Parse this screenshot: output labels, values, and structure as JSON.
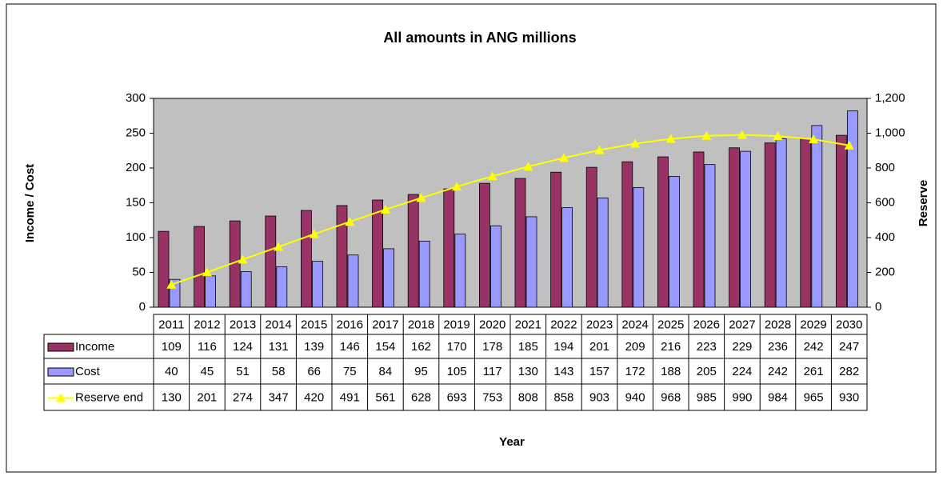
{
  "chart_data": {
    "type": "bar_line_table",
    "title": "All amounts in ANG millions",
    "x_label": "Year",
    "y_label": "Income / Cost",
    "y2_label": "Reserve",
    "categories": [
      "2011",
      "2012",
      "2013",
      "2014",
      "2015",
      "2016",
      "2017",
      "2018",
      "2019",
      "2020",
      "2021",
      "2022",
      "2023",
      "2024",
      "2025",
      "2026",
      "2027",
      "2028",
      "2029",
      "2030"
    ],
    "series": [
      {
        "name": "Income",
        "color": "#993366",
        "type": "bar",
        "values": [
          109,
          116,
          124,
          131,
          139,
          146,
          154,
          162,
          170,
          178,
          185,
          194,
          201,
          209,
          216,
          223,
          229,
          236,
          242,
          247
        ]
      },
      {
        "name": "Cost",
        "color": "#9999ff",
        "type": "bar",
        "values": [
          40,
          45,
          51,
          58,
          66,
          75,
          84,
          95,
          105,
          117,
          130,
          143,
          157,
          172,
          188,
          205,
          224,
          242,
          261,
          282
        ]
      },
      {
        "name": "Reserve end",
        "color": "#ffff00",
        "type": "line",
        "axis": "y2",
        "values": [
          130,
          201,
          274,
          347,
          420,
          491,
          561,
          628,
          693,
          753,
          808,
          858,
          903,
          940,
          968,
          985,
          990,
          984,
          965,
          930
        ]
      }
    ],
    "ylim": [
      0,
      300
    ],
    "yticks": [
      0,
      50,
      100,
      150,
      200,
      250,
      300
    ],
    "y2lim": [
      0,
      1200
    ],
    "y2ticks": [
      0,
      200,
      400,
      600,
      800,
      {
        "value": 1000,
        "label": "1,000"
      },
      {
        "value": 1200,
        "label": "1,200"
      }
    ],
    "plot_background": "#c0c0c0"
  }
}
